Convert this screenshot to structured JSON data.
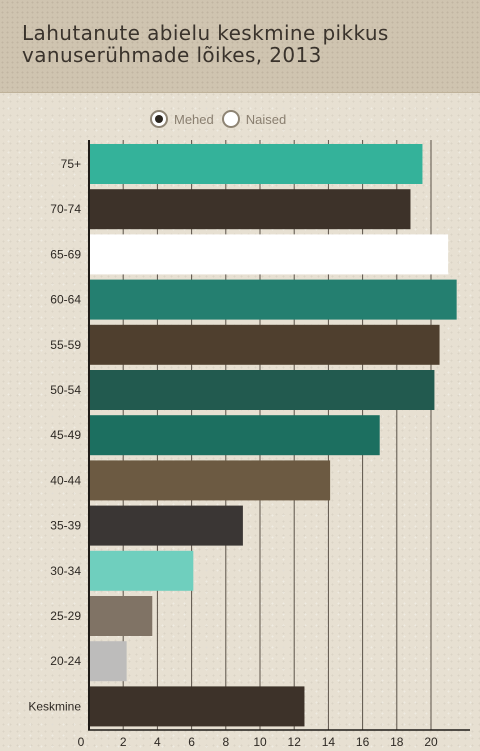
{
  "title": "Lahutanute abielu keskmine pikkus vanuserühmade lõikes, 2013",
  "legend": {
    "items": [
      {
        "label": "Mehed",
        "selected": true
      },
      {
        "label": "Naised",
        "selected": false
      }
    ]
  },
  "chart_data": {
    "type": "bar",
    "orientation": "horizontal",
    "title": "Lahutanute abielu keskmine pikkus vanuserühmade lõikes, 2013",
    "categories": [
      "75+",
      "70-74",
      "65-69",
      "60-64",
      "55-59",
      "50-54",
      "45-49",
      "40-44",
      "35-39",
      "30-34",
      "25-29",
      "20-24",
      "Keskmine"
    ],
    "series": [
      {
        "name": "Mehed",
        "values": [
          19.5,
          18.8,
          21.0,
          21.5,
          20.5,
          20.2,
          17.0,
          14.1,
          9.0,
          6.1,
          3.7,
          2.2,
          12.6
        ]
      }
    ],
    "bar_colors": [
      "#34b29a",
      "#3d3229",
      "#ffffff",
      "#247f70",
      "#4f3f2e",
      "#225a4f",
      "#1c6f60",
      "#6c5a42",
      "#3a3634",
      "#6fcfbe",
      "#807365",
      "#bdbcbb",
      "#3d3229"
    ],
    "xlim": [
      0,
      22
    ],
    "xticks": [
      0,
      2,
      4,
      6,
      8,
      10,
      12,
      14,
      16,
      18,
      20
    ],
    "grid": true,
    "legend_position": "top"
  }
}
